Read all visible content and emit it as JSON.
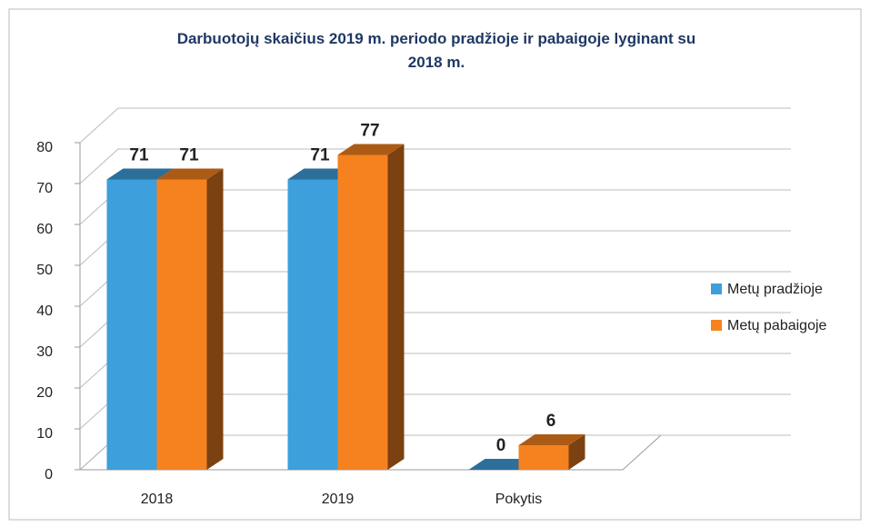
{
  "chart_data": {
    "type": "bar3d",
    "title": "Darbuotojų skaičius 2019 m. periodo pradžioje ir pabaigoje lyginant su 2018 m.",
    "categories": [
      "2018",
      "2019",
      "Pokytis"
    ],
    "series": [
      {
        "name": "Metų pradžioje",
        "color": "#3d9fdc",
        "values": [
          71,
          71,
          0
        ]
      },
      {
        "name": "Metų pabaigoje",
        "color": "#f5821f",
        "values": [
          71,
          77,
          6
        ]
      }
    ],
    "ylim": [
      0,
      80
    ],
    "yticks": [
      0,
      10,
      20,
      30,
      40,
      50,
      60,
      70,
      80
    ],
    "grid": true,
    "legend": "right"
  }
}
